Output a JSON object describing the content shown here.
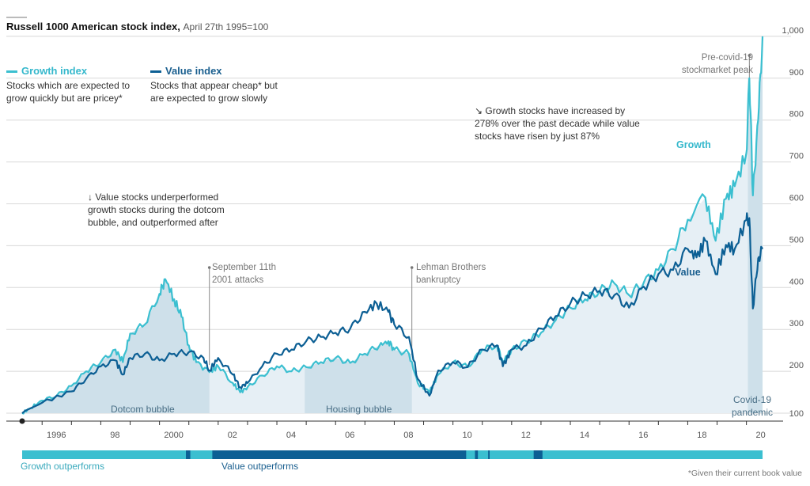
{
  "colors": {
    "growth": "#3bbfd0",
    "value": "#0c5f94",
    "shade": "#c9dde8",
    "area": "#e6eff5",
    "grid": "#d8d8d8"
  },
  "chart_data": {
    "type": "line",
    "title": "Russell 1000 American stock index,",
    "subtitle": "April 27th 1995=100",
    "ylim": [
      100,
      1000
    ],
    "xlim": [
      1995.32,
      2020.55
    ],
    "y_ticks": [
      "100",
      "200",
      "300",
      "400",
      "500",
      "600",
      "700",
      "800",
      "900",
      "1,000"
    ],
    "x_ticks": [
      {
        "year": 1996,
        "label": "1996"
      },
      {
        "year": 1998,
        "label": "98"
      },
      {
        "year": 2000,
        "label": "2000"
      },
      {
        "year": 2002,
        "label": "02"
      },
      {
        "year": 2004,
        "label": "04"
      },
      {
        "year": 2006,
        "label": "06"
      },
      {
        "year": 2008,
        "label": "08"
      },
      {
        "year": 2010,
        "label": "10"
      },
      {
        "year": 2012,
        "label": "12"
      },
      {
        "year": 2014,
        "label": "14"
      },
      {
        "year": 2016,
        "label": "16"
      },
      {
        "year": 2018,
        "label": "18"
      },
      {
        "year": 2020,
        "label": "20"
      }
    ],
    "grid": true,
    "series": [
      {
        "name": "Growth index",
        "description": "Stocks which are expected to grow quickly but are pricey*",
        "label": "Growth",
        "points": [
          [
            1995.32,
            100
          ],
          [
            1995.6,
            112
          ],
          [
            1996,
            130
          ],
          [
            1996.5,
            142
          ],
          [
            1997,
            165
          ],
          [
            1997.5,
            200
          ],
          [
            1998,
            222
          ],
          [
            1998.5,
            252
          ],
          [
            1998.75,
            222
          ],
          [
            1999,
            290
          ],
          [
            1999.5,
            312
          ],
          [
            2000,
            385
          ],
          [
            2000.2,
            420
          ],
          [
            2000.5,
            372
          ],
          [
            2000.75,
            330
          ],
          [
            2001,
            262
          ],
          [
            2001.25,
            222
          ],
          [
            2001.7,
            198
          ],
          [
            2002,
            212
          ],
          [
            2002.5,
            172
          ],
          [
            2002.75,
            150
          ],
          [
            2003,
            162
          ],
          [
            2003.5,
            190
          ],
          [
            2004,
            212
          ],
          [
            2004.5,
            200
          ],
          [
            2005,
            210
          ],
          [
            2005.5,
            222
          ],
          [
            2006,
            232
          ],
          [
            2006.5,
            220
          ],
          [
            2007,
            242
          ],
          [
            2007.5,
            262
          ],
          [
            2007.8,
            272
          ],
          [
            2008,
            252
          ],
          [
            2008.5,
            242
          ],
          [
            2008.8,
            172
          ],
          [
            2009.2,
            150
          ],
          [
            2009.5,
            192
          ],
          [
            2010,
            222
          ],
          [
            2010.5,
            210
          ],
          [
            2011,
            252
          ],
          [
            2011.5,
            262
          ],
          [
            2011.7,
            222
          ],
          [
            2012,
            252
          ],
          [
            2012.5,
            272
          ],
          [
            2013,
            292
          ],
          [
            2013.5,
            322
          ],
          [
            2014,
            352
          ],
          [
            2014.5,
            372
          ],
          [
            2015,
            392
          ],
          [
            2015.5,
            410
          ],
          [
            2016,
            382
          ],
          [
            2016.5,
            412
          ],
          [
            2017,
            442
          ],
          [
            2017.5,
            492
          ],
          [
            2018,
            562
          ],
          [
            2018.6,
            615
          ],
          [
            2018.95,
            512
          ],
          [
            2019.3,
            612
          ],
          [
            2019.6,
            642
          ],
          [
            2020,
            722
          ],
          [
            2020.1,
            900
          ],
          [
            2020.22,
            620
          ],
          [
            2020.4,
            800
          ],
          [
            2020.55,
            1000
          ]
        ]
      },
      {
        "name": "Value index",
        "description": "Stocks that appear cheap* but are expected to grow slowly",
        "label": "Value",
        "points": [
          [
            1995.32,
            100
          ],
          [
            1996,
            125
          ],
          [
            1997,
            152
          ],
          [
            1997.5,
            182
          ],
          [
            1998,
            212
          ],
          [
            1998.5,
            226
          ],
          [
            1998.75,
            192
          ],
          [
            1999,
            232
          ],
          [
            1999.5,
            242
          ],
          [
            2000,
            226
          ],
          [
            2000.5,
            242
          ],
          [
            2001,
            246
          ],
          [
            2001.5,
            232
          ],
          [
            2001.7,
            202
          ],
          [
            2002,
            232
          ],
          [
            2002.5,
            192
          ],
          [
            2002.75,
            162
          ],
          [
            2003,
            172
          ],
          [
            2003.5,
            212
          ],
          [
            2004,
            242
          ],
          [
            2004.5,
            252
          ],
          [
            2005,
            272
          ],
          [
            2005.5,
            282
          ],
          [
            2006,
            292
          ],
          [
            2006.5,
            302
          ],
          [
            2007,
            342
          ],
          [
            2007.4,
            362
          ],
          [
            2007.8,
            342
          ],
          [
            2008,
            312
          ],
          [
            2008.5,
            282
          ],
          [
            2008.8,
            182
          ],
          [
            2009.2,
            142
          ],
          [
            2009.5,
            202
          ],
          [
            2010,
            222
          ],
          [
            2010.5,
            210
          ],
          [
            2011,
            252
          ],
          [
            2011.5,
            262
          ],
          [
            2011.7,
            212
          ],
          [
            2012,
            252
          ],
          [
            2012.5,
            262
          ],
          [
            2013,
            302
          ],
          [
            2013.5,
            332
          ],
          [
            2014,
            362
          ],
          [
            2014.5,
            382
          ],
          [
            2015,
            392
          ],
          [
            2015.5,
            382
          ],
          [
            2016,
            352
          ],
          [
            2016.5,
            402
          ],
          [
            2017,
            432
          ],
          [
            2017.5,
            442
          ],
          [
            2018,
            492
          ],
          [
            2018.3,
            472
          ],
          [
            2018.6,
            512
          ],
          [
            2018.95,
            432
          ],
          [
            2019.3,
            502
          ],
          [
            2019.6,
            492
          ],
          [
            2020,
            562
          ],
          [
            2020.1,
            566
          ],
          [
            2020.22,
            350
          ],
          [
            2020.4,
            470
          ],
          [
            2020.55,
            492
          ]
        ]
      }
    ],
    "shaded_periods": [
      {
        "label": "Dotcom bubble",
        "start": 1995.32,
        "end": 2001.7
      },
      {
        "label": "Housing bubble",
        "start": 2004.95,
        "end": 2008.6
      },
      {
        "label": "Covid-19 pandemic",
        "start": 2020.05,
        "end": 2020.55
      }
    ],
    "events": [
      {
        "label": "September 11th 2001 attacks",
        "year": 2001.7
      },
      {
        "label": "Lehman Brothers bankruptcy",
        "year": 2008.6
      },
      {
        "label": "Pre-covid-19 stockmarket peak",
        "year": 2020.1
      }
    ],
    "annotations": [
      "↓ Value stocks underperformed growth stocks during the dotcom bubble, and outperformed after",
      "↘ Growth stocks have increased by 278% over the past decade while value stocks have risen by just 87%"
    ],
    "outperformance_bar": {
      "growth_label": "Growth outperforms",
      "value_label": "Value outperforms",
      "value_segments": [
        [
          2000.9,
          2001.05
        ],
        [
          2001.8,
          2010.45
        ],
        [
          2010.75,
          2010.85
        ],
        [
          2011.2,
          2011.25
        ],
        [
          2012.75,
          2013.05
        ]
      ]
    },
    "footnote": "*Given their current book value"
  }
}
